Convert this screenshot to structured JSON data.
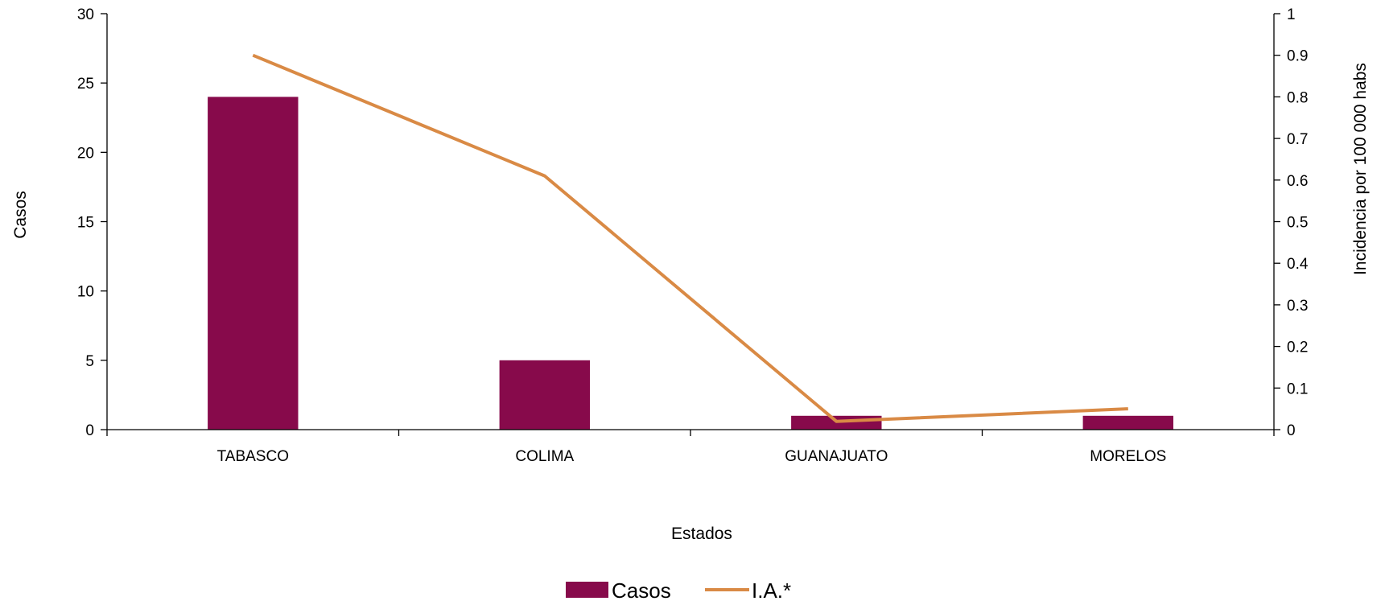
{
  "chart_data": {
    "type": "bar",
    "categories": [
      "TABASCO",
      "COLIMA",
      "GUANAJUATO",
      "MORELOS"
    ],
    "series": [
      {
        "name": "Casos",
        "type": "bar",
        "axis": "left",
        "color": "#870A4B",
        "values": [
          24,
          5,
          1,
          1
        ]
      },
      {
        "name": "I.A.*",
        "type": "line",
        "axis": "right",
        "color": "#D98A45",
        "values": [
          0.9,
          0.61,
          0.02,
          0.05
        ]
      }
    ],
    "xlabel": "Estados",
    "ylabel": "Casos",
    "ylabel_right": "Incidencia por 100 000 habs",
    "ylim": [
      0,
      30
    ],
    "ylim_right": [
      0,
      1
    ],
    "yticks": [
      0,
      5,
      10,
      15,
      20,
      25,
      30
    ],
    "yticks_right": [
      0,
      0.1,
      0.2,
      0.3,
      0.4,
      0.5,
      0.6,
      0.7,
      0.8,
      0.9,
      1
    ],
    "grid": false,
    "legend_position": "bottom-center"
  }
}
